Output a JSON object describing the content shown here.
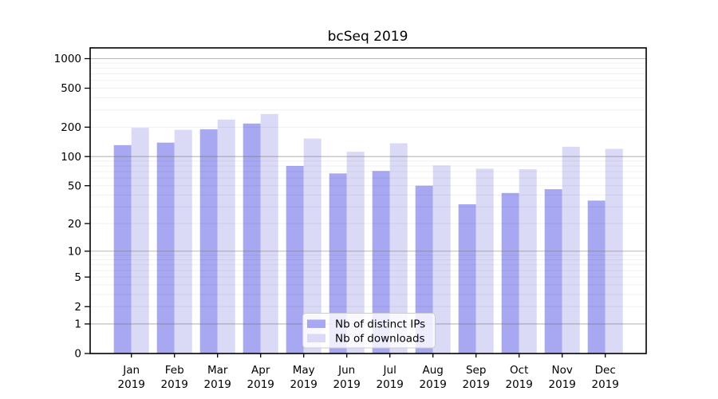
{
  "chart_data": {
    "type": "bar",
    "title": "bcSeq 2019",
    "categories": [
      "Jan 2019",
      "Feb 2019",
      "Mar 2019",
      "Apr 2019",
      "May 2019",
      "Jun 2019",
      "Jul 2019",
      "Aug 2019",
      "Sep 2019",
      "Oct 2019",
      "Nov 2019",
      "Dec 2019"
    ],
    "series": [
      {
        "name": "Nb of distinct IPs",
        "color": "#a7a7f2",
        "values": [
          131,
          139,
          190,
          218,
          80,
          67,
          71,
          50,
          32,
          42,
          46,
          35
        ]
      },
      {
        "name": "Nb of downloads",
        "color": "#dadaf7",
        "values": [
          197,
          188,
          239,
          273,
          153,
          112,
          137,
          81,
          75,
          74,
          126,
          120
        ]
      }
    ],
    "yscale": "log1p",
    "yticks": [
      0,
      1,
      2,
      5,
      10,
      20,
      50,
      100,
      200,
      500,
      1000
    ],
    "minor_gridline_values": [
      2,
      3,
      4,
      5,
      6,
      7,
      8,
      9,
      20,
      30,
      40,
      50,
      60,
      70,
      80,
      90,
      200,
      300,
      400,
      500,
      600,
      700,
      800,
      900
    ],
    "major_gridline_values": [
      1,
      10,
      100,
      1000
    ],
    "ylim": [
      0,
      1300
    ],
    "xlabel": "",
    "ylabel": "",
    "grid": true,
    "legend_position": "lower center",
    "colors": {
      "axis": "#000000",
      "major_grid": "#707070",
      "minor_grid": "#000000",
      "background": "#ffffff"
    }
  }
}
